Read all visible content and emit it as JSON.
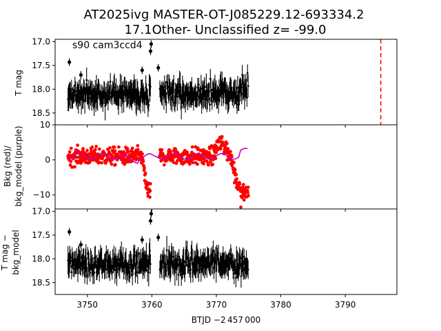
{
  "chart_data": {
    "type": "scatter",
    "title_line1": "AT2025ivg  MASTER-OT-J085229.12-693334.2",
    "title_line2": "17.1Other- Unclassified z= -99.0",
    "xlabel": "BTJD −2 457 000",
    "xlim": [
      3745,
      3798
    ],
    "xticks": [
      3750,
      3760,
      3770,
      3780,
      3790
    ],
    "colors": {
      "data": "#000000",
      "bkg": "#ff0000",
      "bkg_model": "#bf00bf",
      "marker_line": "#ff0000"
    },
    "panels": [
      {
        "ylabel": "T mag",
        "ylim": [
          18.75,
          16.95
        ],
        "yticks": [
          17.0,
          17.5,
          18.0,
          18.5
        ],
        "ytick_labels": [
          "17.0",
          "17.5",
          "18.0",
          "18.5"
        ],
        "annotation": "s90 cam3ccd4",
        "vline_x": 3795.5
      },
      {
        "ylabel_line1": "Bkg (red)/",
        "ylabel_line2": "bkg_model (purple)",
        "ylim": [
          -14,
          10
        ],
        "yticks": [
          -10,
          0,
          10
        ],
        "ytick_labels": [
          "−10",
          "0",
          "10"
        ]
      },
      {
        "ylabel_line1": "T mag −",
        "ylabel_line2": "bkg_model",
        "ylim": [
          18.75,
          16.95
        ],
        "yticks": [
          17.0,
          17.5,
          18.0,
          18.5
        ],
        "ytick_labels": [
          "17.0",
          "17.5",
          "18.0",
          "18.5"
        ]
      }
    ],
    "segments": [
      [
        3747.0,
        3759.8
      ],
      [
        3761.2,
        3775.0
      ]
    ],
    "lightcurve": {
      "center": 18.1,
      "spread": 0.28,
      "errbar": 0.22,
      "outliers": [
        [
          3747.2,
          17.43
        ],
        [
          3759.8,
          17.2
        ],
        [
          3759.9,
          17.05
        ],
        [
          3758.5,
          17.6
        ],
        [
          3761.0,
          17.55
        ],
        [
          3749.0,
          17.7
        ]
      ]
    },
    "background": {
      "level": 1.0,
      "scatter": 2.5,
      "dips": [
        [
          3758.5,
          3760.2,
          -11.5
        ],
        [
          3772.3,
          3775.0,
          -12.5
        ]
      ],
      "bumps": [
        [
          3769.5,
          3772.0,
          4.5
        ]
      ]
    }
  }
}
